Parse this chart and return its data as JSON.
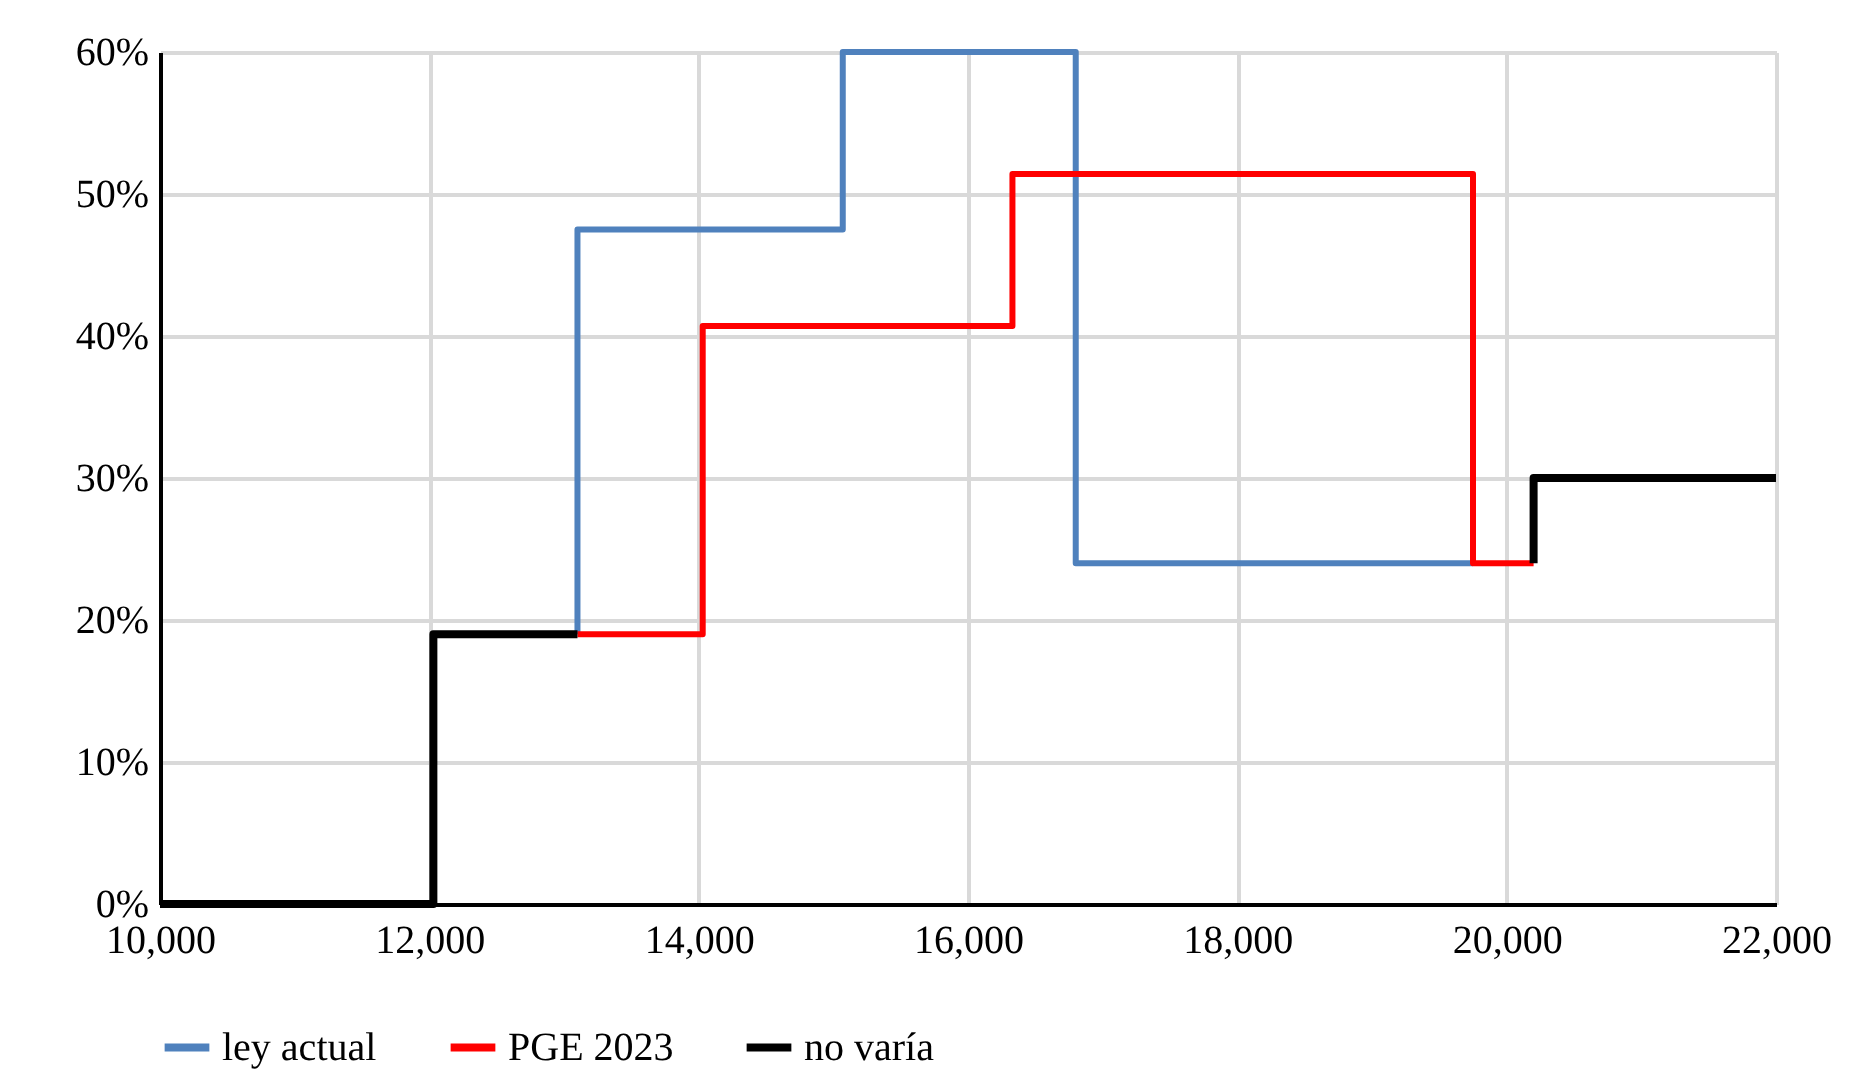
{
  "chart_data": {
    "type": "step",
    "series": [
      {
        "name": "ley actual",
        "color": "#4f81bd",
        "x": [
          13100,
          13100,
          15070,
          16800,
          19750
        ],
        "values": [
          19,
          47.5,
          60,
          24,
          24
        ]
      },
      {
        "name": "PGE 2023",
        "color": "#ff0000",
        "x": [
          13100,
          14030,
          16330,
          19750,
          20200
        ],
        "values": [
          19,
          40.7,
          51.4,
          24,
          24
        ]
      },
      {
        "name": "no varía",
        "color": "#000000",
        "x": [
          10000,
          12030,
          13100,
          null,
          20200,
          20200,
          22000
        ],
        "values": [
          0,
          19,
          19,
          null,
          24,
          30,
          30
        ]
      }
    ],
    "xlim": [
      10000,
      22000
    ],
    "xticks": [
      {
        "value": 10000,
        "label": "10,000"
      },
      {
        "value": 12000,
        "label": "12,000"
      },
      {
        "value": 14000,
        "label": "14,000"
      },
      {
        "value": 16000,
        "label": "16,000"
      },
      {
        "value": 18000,
        "label": "18,000"
      },
      {
        "value": 20000,
        "label": "20,000"
      },
      {
        "value": 22000,
        "label": "22,000"
      }
    ],
    "ylim": [
      0,
      60
    ],
    "yticks": [
      {
        "value": 0,
        "label": "0%"
      },
      {
        "value": 10,
        "label": "10%"
      },
      {
        "value": 20,
        "label": "20%"
      },
      {
        "value": 30,
        "label": "30%"
      },
      {
        "value": 40,
        "label": "40%"
      },
      {
        "value": 50,
        "label": "50%"
      },
      {
        "value": 60,
        "label": "60%"
      }
    ],
    "grid": true,
    "legend": "bottom"
  }
}
